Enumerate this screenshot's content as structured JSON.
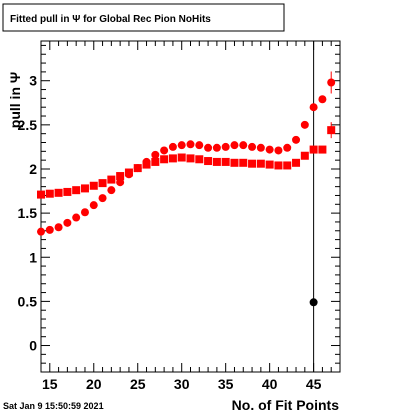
{
  "chart_data": {
    "type": "scatter",
    "title": "Fitted pull in  Ψ  for Global Rec Pion NoHits",
    "xlabel": "No. of Fit Points",
    "ylabel": "pull in  Ψ",
    "xlim": [
      14,
      48
    ],
    "ylim": [
      -0.3,
      3.45
    ],
    "x_ticks": [
      "15",
      "20",
      "25",
      "30",
      "35",
      "40",
      "45"
    ],
    "y_ticks": [
      "0",
      "0.5",
      "1",
      "1.5",
      "2",
      "2.5",
      "3"
    ],
    "grid": false,
    "legend": "none",
    "vertical_line_x": 45,
    "timestamp": "Sat Jan  9 15:50:59 2021",
    "series": [
      {
        "marker": "square",
        "color": "#ff0000",
        "points": [
          [
            14,
            1.71
          ],
          [
            15,
            1.72
          ],
          [
            16,
            1.73
          ],
          [
            17,
            1.74
          ],
          [
            18,
            1.76
          ],
          [
            19,
            1.78
          ],
          [
            20,
            1.81
          ],
          [
            21,
            1.84
          ],
          [
            22,
            1.88
          ],
          [
            23,
            1.92
          ],
          [
            24,
            1.96
          ],
          [
            25,
            2.01
          ],
          [
            26,
            2.05
          ],
          [
            27,
            2.08
          ],
          [
            28,
            2.11
          ],
          [
            29,
            2.12
          ],
          [
            30,
            2.13
          ],
          [
            31,
            2.12
          ],
          [
            32,
            2.11
          ],
          [
            33,
            2.09
          ],
          [
            34,
            2.08
          ],
          [
            35,
            2.08
          ],
          [
            36,
            2.07
          ],
          [
            37,
            2.07
          ],
          [
            38,
            2.06
          ],
          [
            39,
            2.06
          ],
          [
            40,
            2.05
          ],
          [
            41,
            2.04
          ],
          [
            42,
            2.04
          ],
          [
            43,
            2.07
          ],
          [
            44,
            2.15
          ],
          [
            45,
            2.22
          ],
          [
            46,
            2.22
          ],
          [
            47,
            2.44
          ]
        ]
      },
      {
        "marker": "circle",
        "color": "#ff0000",
        "points": [
          [
            14,
            1.29
          ],
          [
            15,
            1.31
          ],
          [
            16,
            1.34
          ],
          [
            17,
            1.39
          ],
          [
            18,
            1.45
          ],
          [
            19,
            1.51
          ],
          [
            20,
            1.59
          ],
          [
            21,
            1.67
          ],
          [
            22,
            1.76
          ],
          [
            23,
            1.85
          ],
          [
            24,
            1.94
          ],
          [
            25,
            2.01
          ],
          [
            26,
            2.08
          ],
          [
            27,
            2.16
          ],
          [
            28,
            2.21
          ],
          [
            29,
            2.25
          ],
          [
            30,
            2.27
          ],
          [
            31,
            2.28
          ],
          [
            32,
            2.27
          ],
          [
            33,
            2.24
          ],
          [
            34,
            2.24
          ],
          [
            35,
            2.25
          ],
          [
            36,
            2.27
          ],
          [
            37,
            2.27
          ],
          [
            38,
            2.25
          ],
          [
            39,
            2.24
          ],
          [
            40,
            2.22
          ],
          [
            41,
            2.21
          ],
          [
            42,
            2.24
          ],
          [
            43,
            2.33
          ],
          [
            44,
            2.5
          ],
          [
            45,
            2.7
          ],
          [
            46,
            2.79
          ],
          [
            47,
            2.98
          ]
        ]
      },
      {
        "marker": "circle",
        "color": "#000000",
        "points": [
          [
            45,
            0.49
          ]
        ]
      }
    ]
  }
}
